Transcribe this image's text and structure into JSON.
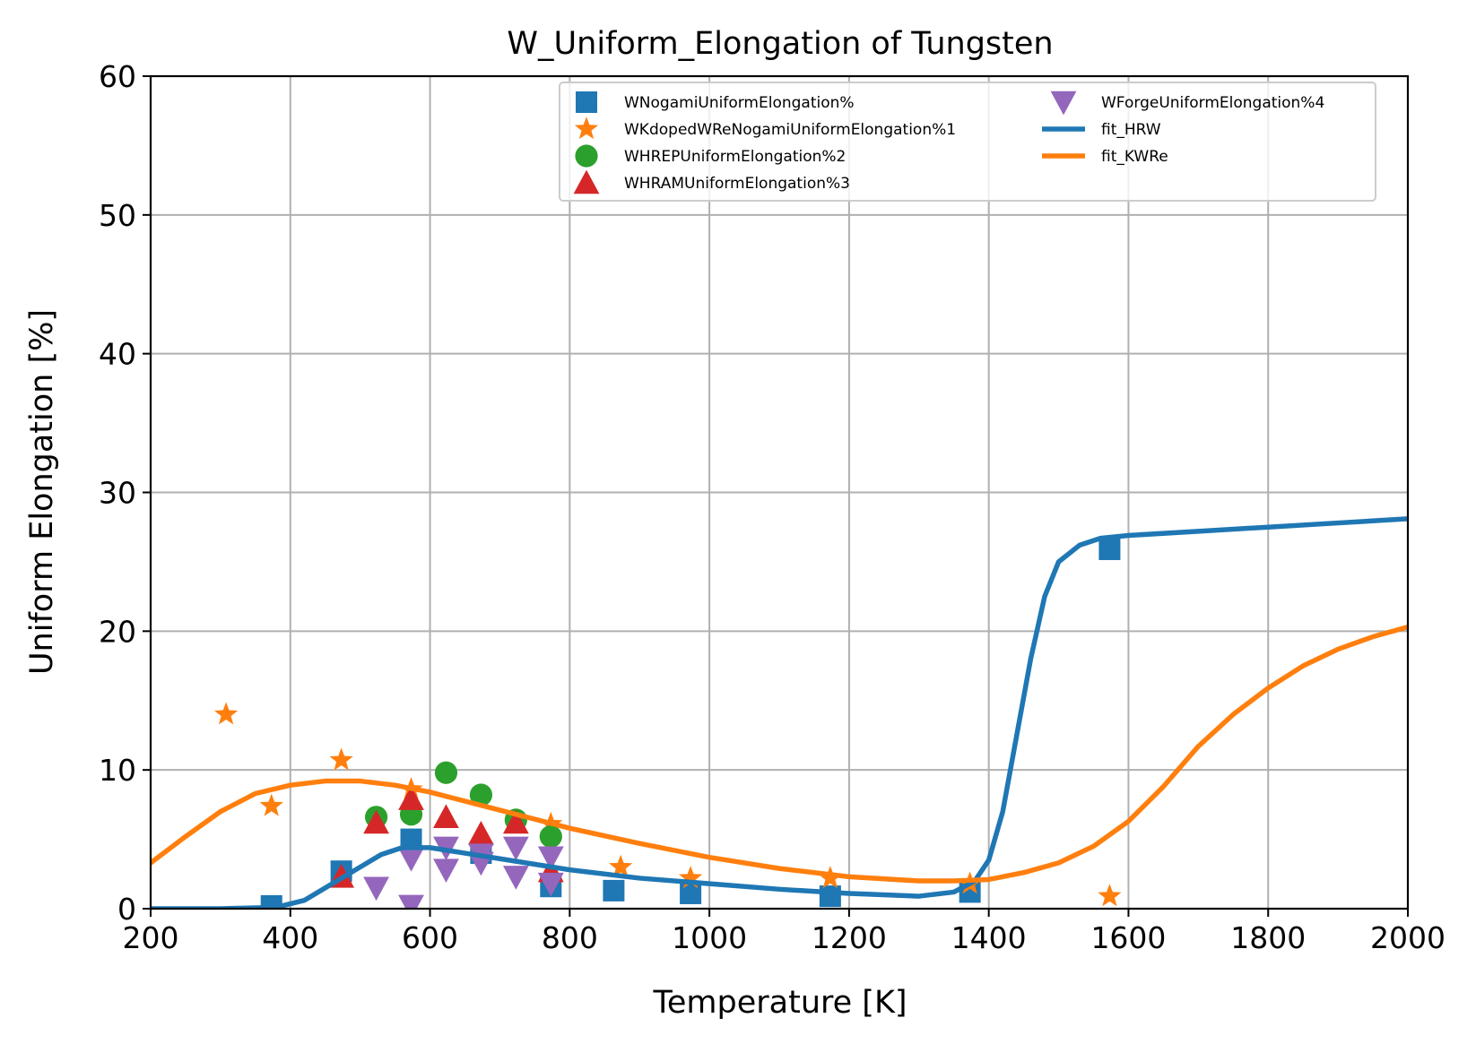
{
  "chart_data": {
    "type": "scatter",
    "title": "W_Uniform_Elongation of Tungsten",
    "xlabel": "Temperature [K]",
    "ylabel": "Uniform Elongation [%]",
    "xlim": [
      200,
      2000
    ],
    "ylim": [
      0,
      60
    ],
    "xticks": [
      200,
      400,
      600,
      800,
      1000,
      1200,
      1400,
      1600,
      1800,
      2000
    ],
    "yticks": [
      0,
      10,
      20,
      30,
      40,
      50,
      60
    ],
    "xtick_labels": [
      "200",
      "400",
      "600",
      "800",
      "1000",
      "1200",
      "1400",
      "1600",
      "1800",
      "2000"
    ],
    "ytick_labels": [
      "0",
      "10",
      "20",
      "30",
      "40",
      "50",
      "60"
    ],
    "grid": true,
    "legend_position": "top-right",
    "legend_columns": 2,
    "series": [
      {
        "name": "WNogamiUniformElongation%",
        "kind": "scatter",
        "marker": "square",
        "color": "#1f77b4",
        "points": [
          [
            373,
            0.2
          ],
          [
            473,
            2.7
          ],
          [
            573,
            5.0
          ],
          [
            673,
            4.0
          ],
          [
            773,
            1.6
          ],
          [
            863,
            1.3
          ],
          [
            973,
            1.1
          ],
          [
            1173,
            0.9
          ],
          [
            1373,
            1.2
          ],
          [
            1573,
            25.9
          ]
        ]
      },
      {
        "name": "WKdopedWReNogamiUniformElongation%1",
        "kind": "scatter",
        "marker": "star",
        "color": "#ff7f0e",
        "points": [
          [
            308,
            14.0
          ],
          [
            373,
            7.4
          ],
          [
            473,
            10.7
          ],
          [
            573,
            8.6
          ],
          [
            773,
            6.1
          ],
          [
            873,
            3.0
          ],
          [
            973,
            2.2
          ],
          [
            1173,
            2.2
          ],
          [
            1373,
            1.8
          ],
          [
            1573,
            0.9
          ]
        ]
      },
      {
        "name": "WHREPUniformElongation%2",
        "kind": "scatter",
        "marker": "circle",
        "color": "#2ca02c",
        "points": [
          [
            523,
            6.6
          ],
          [
            573,
            6.8
          ],
          [
            623,
            9.8
          ],
          [
            673,
            8.2
          ],
          [
            723,
            6.4
          ],
          [
            773,
            5.2
          ]
        ]
      },
      {
        "name": "WHRAMUniformElongation%3",
        "kind": "scatter",
        "marker": "triangle-up",
        "color": "#d62728",
        "points": [
          [
            473,
            2.3
          ],
          [
            523,
            6.2
          ],
          [
            573,
            7.9
          ],
          [
            623,
            6.6
          ],
          [
            673,
            5.4
          ],
          [
            723,
            6.2
          ],
          [
            773,
            2.7
          ]
        ]
      },
      {
        "name": "WForgeUniformElongation%4",
        "kind": "scatter",
        "marker": "triangle-down",
        "color": "#9467bd",
        "points": [
          [
            523,
            1.5
          ],
          [
            573,
            0.2
          ],
          [
            573,
            3.6
          ],
          [
            623,
            2.8
          ],
          [
            623,
            4.4
          ],
          [
            673,
            3.3
          ],
          [
            673,
            3.9
          ],
          [
            723,
            2.3
          ],
          [
            723,
            4.4
          ],
          [
            773,
            1.8
          ],
          [
            773,
            3.7
          ]
        ]
      },
      {
        "name": "fit_HRW",
        "kind": "line",
        "color": "#1f77b4",
        "points": [
          [
            200,
            0.0
          ],
          [
            300,
            0.0
          ],
          [
            380,
            0.1
          ],
          [
            420,
            0.6
          ],
          [
            460,
            1.8
          ],
          [
            500,
            3.0
          ],
          [
            530,
            3.9
          ],
          [
            560,
            4.4
          ],
          [
            600,
            4.4
          ],
          [
            650,
            4.0
          ],
          [
            700,
            3.6
          ],
          [
            800,
            2.8
          ],
          [
            900,
            2.2
          ],
          [
            1000,
            1.8
          ],
          [
            1100,
            1.4
          ],
          [
            1200,
            1.1
          ],
          [
            1300,
            0.9
          ],
          [
            1350,
            1.2
          ],
          [
            1380,
            2.0
          ],
          [
            1400,
            3.5
          ],
          [
            1420,
            7.0
          ],
          [
            1440,
            12.5
          ],
          [
            1460,
            18.0
          ],
          [
            1480,
            22.5
          ],
          [
            1500,
            25.0
          ],
          [
            1530,
            26.2
          ],
          [
            1560,
            26.7
          ],
          [
            1600,
            26.9
          ],
          [
            1700,
            27.2
          ],
          [
            1800,
            27.5
          ],
          [
            1900,
            27.8
          ],
          [
            2000,
            28.1
          ]
        ]
      },
      {
        "name": "fit_KWRe",
        "kind": "line",
        "color": "#ff7f0e",
        "points": [
          [
            200,
            3.3
          ],
          [
            250,
            5.2
          ],
          [
            300,
            7.0
          ],
          [
            350,
            8.3
          ],
          [
            400,
            8.9
          ],
          [
            450,
            9.2
          ],
          [
            500,
            9.2
          ],
          [
            550,
            8.9
          ],
          [
            600,
            8.4
          ],
          [
            700,
            7.1
          ],
          [
            800,
            5.8
          ],
          [
            900,
            4.7
          ],
          [
            1000,
            3.7
          ],
          [
            1100,
            2.9
          ],
          [
            1200,
            2.3
          ],
          [
            1300,
            2.0
          ],
          [
            1350,
            2.0
          ],
          [
            1400,
            2.1
          ],
          [
            1450,
            2.6
          ],
          [
            1500,
            3.3
          ],
          [
            1550,
            4.5
          ],
          [
            1600,
            6.3
          ],
          [
            1650,
            8.8
          ],
          [
            1700,
            11.7
          ],
          [
            1750,
            14.0
          ],
          [
            1800,
            15.9
          ],
          [
            1850,
            17.5
          ],
          [
            1900,
            18.7
          ],
          [
            1950,
            19.6
          ],
          [
            2000,
            20.3
          ]
        ]
      }
    ]
  }
}
